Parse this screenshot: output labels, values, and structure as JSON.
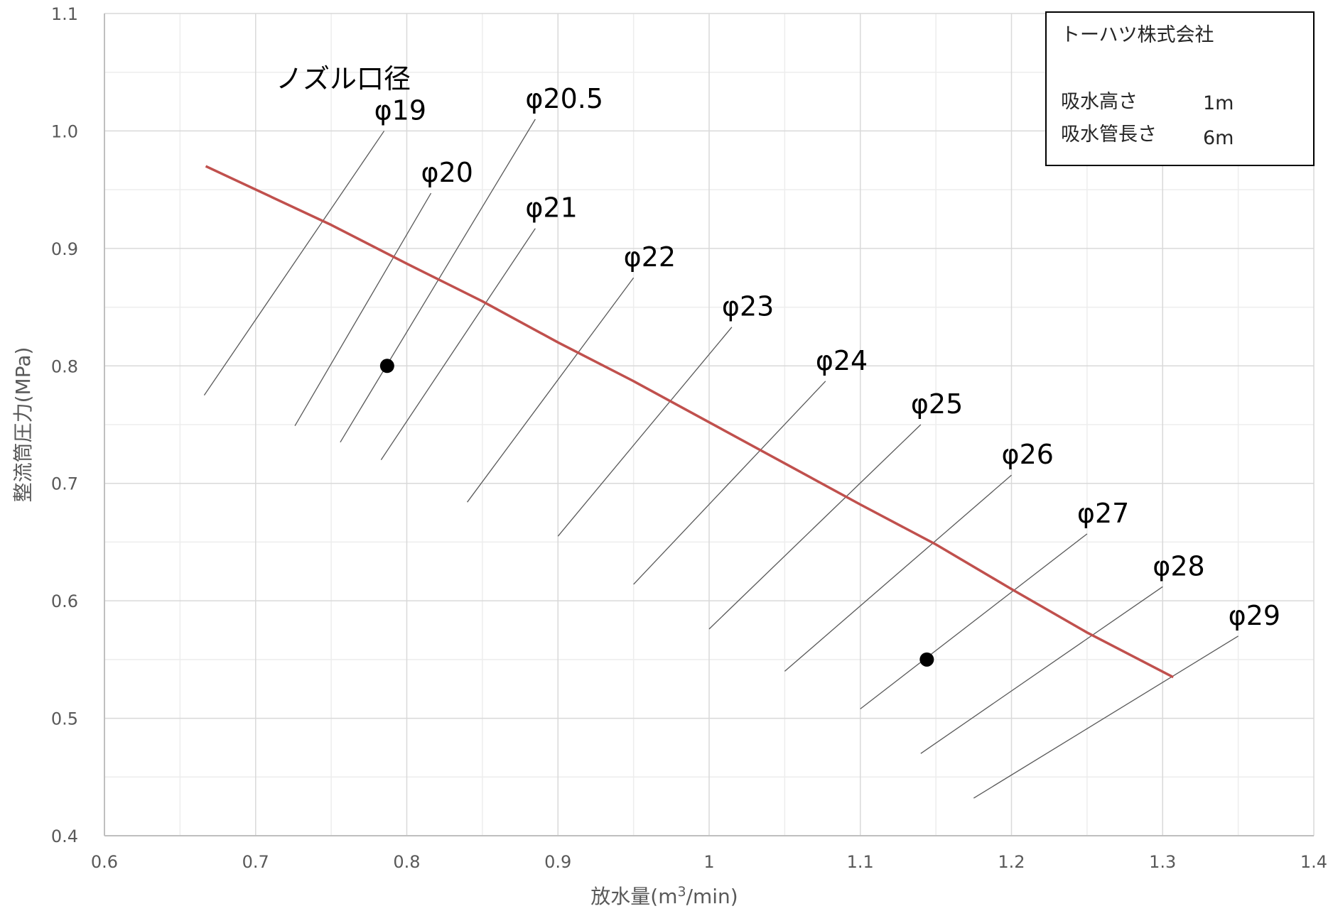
{
  "chart_data": {
    "type": "line",
    "xlabel": "放水量(m³/min)",
    "ylabel": "整流筒圧力(MPa)",
    "xlim": [
      0.6,
      1.4
    ],
    "ylim": [
      0.4,
      1.1
    ],
    "x_ticks": [
      "0.6",
      "0.7",
      "0.8",
      "0.9",
      "1",
      "1.1",
      "1.2",
      "1.3",
      "1.4"
    ],
    "y_ticks": [
      "0.4",
      "0.5",
      "0.6",
      "0.7",
      "0.8",
      "0.9",
      "1.0",
      "1.1"
    ],
    "grid": true,
    "pump_curve": {
      "color": "#c0504d",
      "x": [
        0.667,
        0.75,
        0.8,
        0.85,
        0.9,
        0.95,
        1.0,
        1.05,
        1.1,
        1.15,
        1.2,
        1.25,
        1.307
      ],
      "y": [
        0.97,
        0.92,
        0.887,
        0.855,
        0.82,
        0.787,
        0.752,
        0.717,
        0.682,
        0.648,
        0.61,
        0.573,
        0.535
      ]
    },
    "nozzle_title": "ノズル口径",
    "nozzle_lines": [
      {
        "label": "φ19",
        "x": [
          0.666,
          0.785
        ],
        "y": [
          0.775,
          1.0
        ]
      },
      {
        "label": "φ20",
        "x": [
          0.726,
          0.816
        ],
        "y": [
          0.749,
          0.947
        ]
      },
      {
        "label": "φ20.5",
        "x": [
          0.756,
          0.885
        ],
        "y": [
          0.735,
          1.01
        ]
      },
      {
        "label": "φ21",
        "x": [
          0.783,
          0.885
        ],
        "y": [
          0.72,
          0.917
        ]
      },
      {
        "label": "φ22",
        "x": [
          0.84,
          0.95
        ],
        "y": [
          0.684,
          0.875
        ]
      },
      {
        "label": "φ23",
        "x": [
          0.9,
          1.015
        ],
        "y": [
          0.655,
          0.833
        ]
      },
      {
        "label": "φ24",
        "x": [
          0.95,
          1.077
        ],
        "y": [
          0.614,
          0.787
        ]
      },
      {
        "label": "φ25",
        "x": [
          1.0,
          1.14
        ],
        "y": [
          0.576,
          0.75
        ]
      },
      {
        "label": "φ26",
        "x": [
          1.05,
          1.2
        ],
        "y": [
          0.54,
          0.707
        ]
      },
      {
        "label": "φ27",
        "x": [
          1.1,
          1.25
        ],
        "y": [
          0.508,
          0.657
        ]
      },
      {
        "label": "φ28",
        "x": [
          1.14,
          1.3
        ],
        "y": [
          0.47,
          0.612
        ]
      },
      {
        "label": "φ29",
        "x": [
          1.175,
          1.35
        ],
        "y": [
          0.432,
          0.57
        ]
      }
    ],
    "points": [
      {
        "x": 0.787,
        "y": 0.8
      },
      {
        "x": 1.144,
        "y": 0.55
      }
    ]
  },
  "info_box": {
    "company": "トーハツ株式会社",
    "rows": [
      {
        "label": "吸水高さ",
        "value": "1m"
      },
      {
        "label": "吸水管長さ",
        "value": "6m"
      }
    ]
  }
}
